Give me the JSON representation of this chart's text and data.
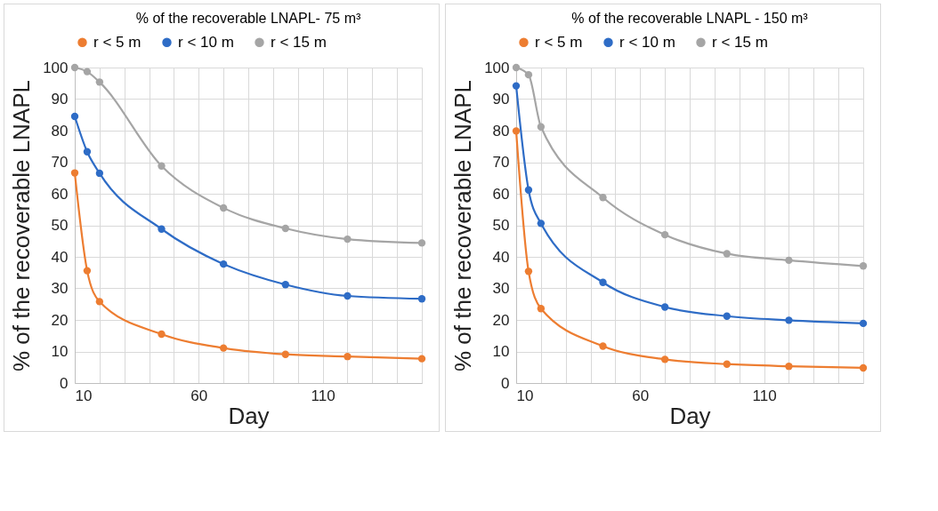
{
  "chart_data": [
    {
      "type": "line",
      "title": "% of the recoverable LNAPL- 75 m³",
      "xlabel": "Day",
      "ylabel": "% of the recoverable LNAPL",
      "x": [
        10,
        15,
        20,
        45,
        70,
        95,
        120,
        150
      ],
      "series": [
        {
          "name": "r < 5 m",
          "color": "#ed7d31",
          "values": [
            66.6,
            35.6,
            25.8,
            15.5,
            11.1,
            9.1,
            8.4,
            7.7
          ]
        },
        {
          "name": "r < 10 m",
          "color": "#2e6cc6",
          "values": [
            84.5,
            73.3,
            66.5,
            48.8,
            37.7,
            31.2,
            27.6,
            26.7
          ]
        },
        {
          "name": "r < 15 m",
          "color": "#a5a5a5",
          "values": [
            100,
            98.7,
            95.4,
            68.8,
            55.5,
            49.0,
            45.6,
            44.4
          ]
        }
      ],
      "xlim": [
        10,
        150
      ],
      "xticks": [
        10,
        {
          "value": 20,
          "label": null
        },
        {
          "value": 30,
          "label": null
        },
        {
          "value": 40,
          "label": null
        },
        {
          "value": 50,
          "label": null
        },
        60,
        {
          "value": 70,
          "label": null
        },
        {
          "value": 80,
          "label": null
        },
        {
          "value": 90,
          "label": null
        },
        {
          "value": 100,
          "label": null
        },
        110,
        {
          "value": 120,
          "label": null
        },
        {
          "value": 130,
          "label": null
        },
        {
          "value": 140,
          "label": null
        },
        {
          "value": 150,
          "label": null
        }
      ],
      "ylim": [
        0,
        100
      ],
      "yticks": [
        0,
        10,
        20,
        30,
        40,
        50,
        60,
        70,
        80,
        90,
        100
      ],
      "grid": true,
      "legend": "top",
      "marker": "circle"
    },
    {
      "type": "line",
      "title": "% of the recoverable LNAPL - 150 m³",
      "xlabel": "Day",
      "ylabel": "% of the recoverable LNAPL",
      "x": [
        10,
        15,
        20,
        45,
        70,
        95,
        120,
        150
      ],
      "series": [
        {
          "name": "r < 5 m",
          "color": "#ed7d31",
          "values": [
            79.9,
            35.4,
            23.6,
            11.7,
            7.5,
            6.0,
            5.3,
            4.8
          ]
        },
        {
          "name": "r < 10 m",
          "color": "#2e6cc6",
          "values": [
            94.2,
            61.2,
            50.6,
            31.9,
            24.1,
            21.2,
            19.9,
            18.9
          ]
        },
        {
          "name": "r < 15 m",
          "color": "#a5a5a5",
          "values": [
            100,
            97.7,
            81.2,
            58.8,
            47.0,
            41.0,
            38.9,
            37.1
          ]
        }
      ],
      "xlim": [
        10,
        150
      ],
      "xticks": [
        10,
        {
          "value": 20,
          "label": null
        },
        {
          "value": 30,
          "label": null
        },
        {
          "value": 40,
          "label": null
        },
        {
          "value": 50,
          "label": null
        },
        60,
        {
          "value": 70,
          "label": null
        },
        {
          "value": 80,
          "label": null
        },
        {
          "value": 90,
          "label": null
        },
        {
          "value": 100,
          "label": null
        },
        110,
        {
          "value": 120,
          "label": null
        },
        {
          "value": 130,
          "label": null
        },
        {
          "value": 140,
          "label": null
        },
        {
          "value": 150,
          "label": null
        }
      ],
      "ylim": [
        0,
        100
      ],
      "yticks": [
        0,
        10,
        20,
        30,
        40,
        50,
        60,
        70,
        80,
        90,
        100
      ],
      "grid": true,
      "legend": "top",
      "marker": "circle"
    }
  ]
}
